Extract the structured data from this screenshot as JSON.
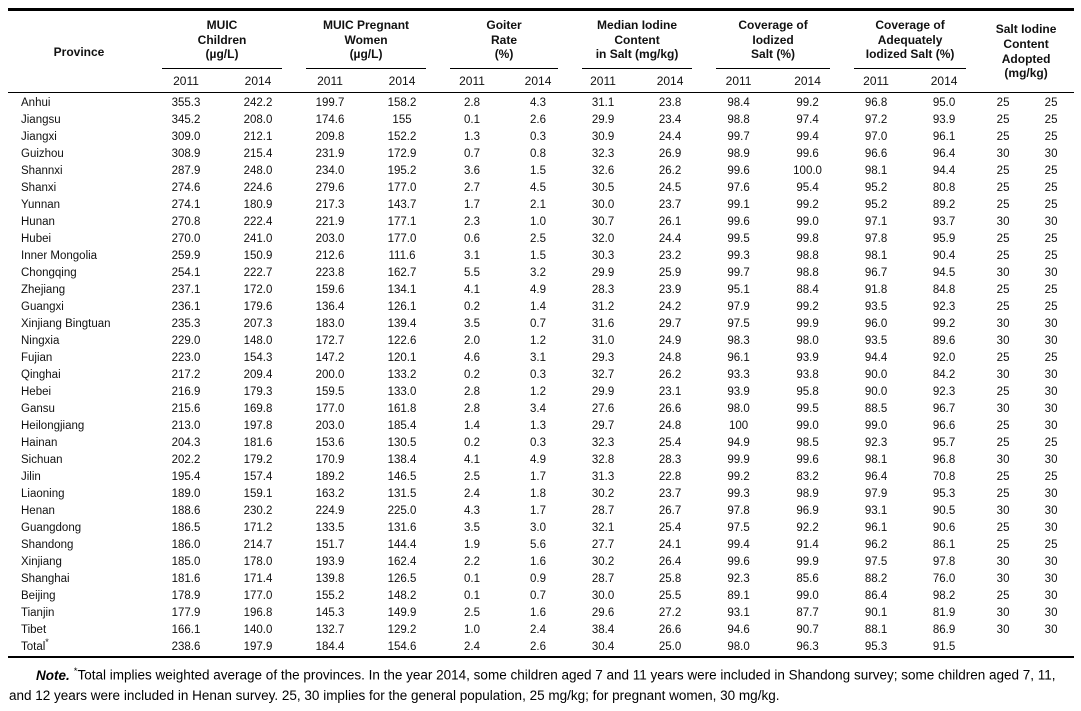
{
  "table": {
    "province_header": "Province",
    "groups": [
      "MUIC\nChildren\n(µg/L)",
      "MUIC Pregnant\nWomen\n(µg/L)",
      "Goiter\nRate\n(%)",
      "Median Iodine\nContent\nin Salt (mg/kg)",
      "Coverage of\nIodized\nSalt (%)",
      "Coverage of\nAdequately\nIodized Salt (%)"
    ],
    "salt_group": "Salt Iodine\nContent\nAdopted\n(mg/kg)",
    "year_headers": [
      "2011",
      "2014"
    ],
    "rows": [
      {
        "name": "Anhui",
        "values": [
          "355.3",
          "242.2",
          "199.7",
          "158.2",
          "2.8",
          "4.3",
          "31.1",
          "23.8",
          "98.4",
          "99.2",
          "96.8",
          "95.0",
          "25",
          "25"
        ]
      },
      {
        "name": "Jiangsu",
        "values": [
          "345.2",
          "208.0",
          "174.6",
          "155",
          "0.1",
          "2.6",
          "29.9",
          "23.4",
          "98.8",
          "97.4",
          "97.2",
          "93.9",
          "25",
          "25"
        ]
      },
      {
        "name": "Jiangxi",
        "values": [
          "309.0",
          "212.1",
          "209.8",
          "152.2",
          "1.3",
          "0.3",
          "30.9",
          "24.4",
          "99.7",
          "99.4",
          "97.0",
          "96.1",
          "25",
          "25"
        ]
      },
      {
        "name": "Guizhou",
        "values": [
          "308.9",
          "215.4",
          "231.9",
          "172.9",
          "0.7",
          "0.8",
          "32.3",
          "26.9",
          "98.9",
          "99.6",
          "96.6",
          "96.4",
          "30",
          "30"
        ]
      },
      {
        "name": "Shannxi",
        "values": [
          "287.9",
          "248.0",
          "234.0",
          "195.2",
          "3.6",
          "1.5",
          "32.6",
          "26.2",
          "99.6",
          "100.0",
          "98.1",
          "94.4",
          "25",
          "25"
        ]
      },
      {
        "name": "Shanxi",
        "values": [
          "274.6",
          "224.6",
          "279.6",
          "177.0",
          "2.7",
          "4.5",
          "30.5",
          "24.5",
          "97.6",
          "95.4",
          "95.2",
          "80.8",
          "25",
          "25"
        ]
      },
      {
        "name": "Yunnan",
        "values": [
          "274.1",
          "180.9",
          "217.3",
          "143.7",
          "1.7",
          "2.1",
          "30.0",
          "23.7",
          "99.1",
          "99.2",
          "95.2",
          "89.2",
          "25",
          "25"
        ]
      },
      {
        "name": "Hunan",
        "values": [
          "270.8",
          "222.4",
          "221.9",
          "177.1",
          "2.3",
          "1.0",
          "30.7",
          "26.1",
          "99.6",
          "99.0",
          "97.1",
          "93.7",
          "30",
          "30"
        ]
      },
      {
        "name": "Hubei",
        "values": [
          "270.0",
          "241.0",
          "203.0",
          "177.0",
          "0.6",
          "2.5",
          "32.0",
          "24.4",
          "99.5",
          "99.8",
          "97.8",
          "95.9",
          "25",
          "25"
        ]
      },
      {
        "name": "Inner Mongolia",
        "values": [
          "259.9",
          "150.9",
          "212.6",
          "111.6",
          "3.1",
          "1.5",
          "30.3",
          "23.2",
          "99.3",
          "98.8",
          "98.1",
          "90.4",
          "25",
          "25"
        ]
      },
      {
        "name": "Chongqing",
        "values": [
          "254.1",
          "222.7",
          "223.8",
          "162.7",
          "5.5",
          "3.2",
          "29.9",
          "25.9",
          "99.7",
          "98.8",
          "96.7",
          "94.5",
          "30",
          "30"
        ]
      },
      {
        "name": "Zhejiang",
        "values": [
          "237.1",
          "172.0",
          "159.6",
          "134.1",
          "4.1",
          "4.9",
          "28.3",
          "23.9",
          "95.1",
          "88.4",
          "91.8",
          "84.8",
          "25",
          "25"
        ]
      },
      {
        "name": "Guangxi",
        "values": [
          "236.1",
          "179.6",
          "136.4",
          "126.1",
          "0.2",
          "1.4",
          "31.2",
          "24.2",
          "97.9",
          "99.2",
          "93.5",
          "92.3",
          "25",
          "25"
        ]
      },
      {
        "name": "Xinjiang Bingtuan",
        "values": [
          "235.3",
          "207.3",
          "183.0",
          "139.4",
          "3.5",
          "0.7",
          "31.6",
          "29.7",
          "97.5",
          "99.9",
          "96.0",
          "99.2",
          "30",
          "30"
        ]
      },
      {
        "name": "Ningxia",
        "values": [
          "229.0",
          "148.0",
          "172.7",
          "122.6",
          "2.0",
          "1.2",
          "31.0",
          "24.9",
          "98.3",
          "98.0",
          "93.5",
          "89.6",
          "30",
          "30"
        ]
      },
      {
        "name": "Fujian",
        "values": [
          "223.0",
          "154.3",
          "147.2",
          "120.1",
          "4.6",
          "3.1",
          "29.3",
          "24.8",
          "96.1",
          "93.9",
          "94.4",
          "92.0",
          "25",
          "25"
        ]
      },
      {
        "name": "Qinghai",
        "values": [
          "217.2",
          "209.4",
          "200.0",
          "133.2",
          "0.2",
          "0.3",
          "32.7",
          "26.2",
          "93.3",
          "93.8",
          "90.0",
          "84.2",
          "30",
          "30"
        ]
      },
      {
        "name": "Hebei",
        "values": [
          "216.9",
          "179.3",
          "159.5",
          "133.0",
          "2.8",
          "1.2",
          "29.9",
          "23.1",
          "93.9",
          "95.8",
          "90.0",
          "92.3",
          "25",
          "30"
        ]
      },
      {
        "name": "Gansu",
        "values": [
          "215.6",
          "169.8",
          "177.0",
          "161.8",
          "2.8",
          "3.4",
          "27.6",
          "26.6",
          "98.0",
          "99.5",
          "88.5",
          "96.7",
          "30",
          "30"
        ]
      },
      {
        "name": "Heilongjiang",
        "values": [
          "213.0",
          "197.8",
          "203.0",
          "185.4",
          "1.4",
          "1.3",
          "29.7",
          "24.8",
          "100",
          "99.0",
          "99.0",
          "96.6",
          "25",
          "30"
        ]
      },
      {
        "name": "Hainan",
        "values": [
          "204.3",
          "181.6",
          "153.6",
          "130.5",
          "0.2",
          "0.3",
          "32.3",
          "25.4",
          "94.9",
          "98.5",
          "92.3",
          "95.7",
          "25",
          "25"
        ]
      },
      {
        "name": "Sichuan",
        "values": [
          "202.2",
          "179.2",
          "170.9",
          "138.4",
          "4.1",
          "4.9",
          "32.8",
          "28.3",
          "99.9",
          "99.6",
          "98.1",
          "96.8",
          "30",
          "30"
        ]
      },
      {
        "name": "Jilin",
        "values": [
          "195.4",
          "157.4",
          "189.2",
          "146.5",
          "2.5",
          "1.7",
          "31.3",
          "22.8",
          "99.2",
          "83.2",
          "96.4",
          "70.8",
          "25",
          "25"
        ]
      },
      {
        "name": "Liaoning",
        "values": [
          "189.0",
          "159.1",
          "163.2",
          "131.5",
          "2.4",
          "1.8",
          "30.2",
          "23.7",
          "99.3",
          "98.9",
          "97.9",
          "95.3",
          "25",
          "30"
        ]
      },
      {
        "name": "Henan",
        "values": [
          "188.6",
          "230.2",
          "224.9",
          "225.0",
          "4.3",
          "1.7",
          "28.7",
          "26.7",
          "97.8",
          "96.9",
          "93.1",
          "90.5",
          "30",
          "30"
        ]
      },
      {
        "name": "Guangdong",
        "values": [
          "186.5",
          "171.2",
          "133.5",
          "131.6",
          "3.5",
          "3.0",
          "32.1",
          "25.4",
          "97.5",
          "92.2",
          "96.1",
          "90.6",
          "25",
          "30"
        ]
      },
      {
        "name": "Shandong",
        "values": [
          "186.0",
          "214.7",
          "151.7",
          "144.4",
          "1.9",
          "5.6",
          "27.7",
          "24.1",
          "99.4",
          "91.4",
          "96.2",
          "86.1",
          "25",
          "25"
        ]
      },
      {
        "name": "Xinjiang",
        "values": [
          "185.0",
          "178.0",
          "193.9",
          "162.4",
          "2.2",
          "1.6",
          "30.2",
          "26.4",
          "99.6",
          "99.9",
          "97.5",
          "97.8",
          "30",
          "30"
        ]
      },
      {
        "name": "Shanghai",
        "values": [
          "181.6",
          "171.4",
          "139.8",
          "126.5",
          "0.1",
          "0.9",
          "28.7",
          "25.8",
          "92.3",
          "85.6",
          "88.2",
          "76.0",
          "30",
          "30"
        ]
      },
      {
        "name": "Beijing",
        "values": [
          "178.9",
          "177.0",
          "155.2",
          "148.2",
          "0.1",
          "0.7",
          "30.0",
          "25.5",
          "89.1",
          "99.0",
          "86.4",
          "98.2",
          "25",
          "30"
        ]
      },
      {
        "name": "Tianjin",
        "values": [
          "177.9",
          "196.8",
          "145.3",
          "149.9",
          "2.5",
          "1.6",
          "29.6",
          "27.2",
          "93.1",
          "87.7",
          "90.1",
          "81.9",
          "30",
          "30"
        ]
      },
      {
        "name": "Tibet",
        "values": [
          "166.1",
          "140.0",
          "132.7",
          "129.2",
          "1.0",
          "2.4",
          "38.4",
          "26.6",
          "94.6",
          "90.7",
          "88.1",
          "86.9",
          "30",
          "30"
        ]
      },
      {
        "name": "Total",
        "asterisk": "*",
        "values": [
          "238.6",
          "197.9",
          "184.4",
          "154.6",
          "2.4",
          "2.6",
          "30.4",
          "25.0",
          "98.0",
          "96.3",
          "95.3",
          "91.5",
          "",
          ""
        ]
      }
    ]
  },
  "note": {
    "label": "Note.",
    "asterisk": "*",
    "text": "Total implies weighted average of the provinces. In the year 2014, some children aged 7 and 11 years were included in Shandong survey; some children aged 7, 11, and 12 years were included in Henan survey. 25, 30 implies for the general population, 25 mg/kg; for pregnant women, 30 mg/kg."
  }
}
